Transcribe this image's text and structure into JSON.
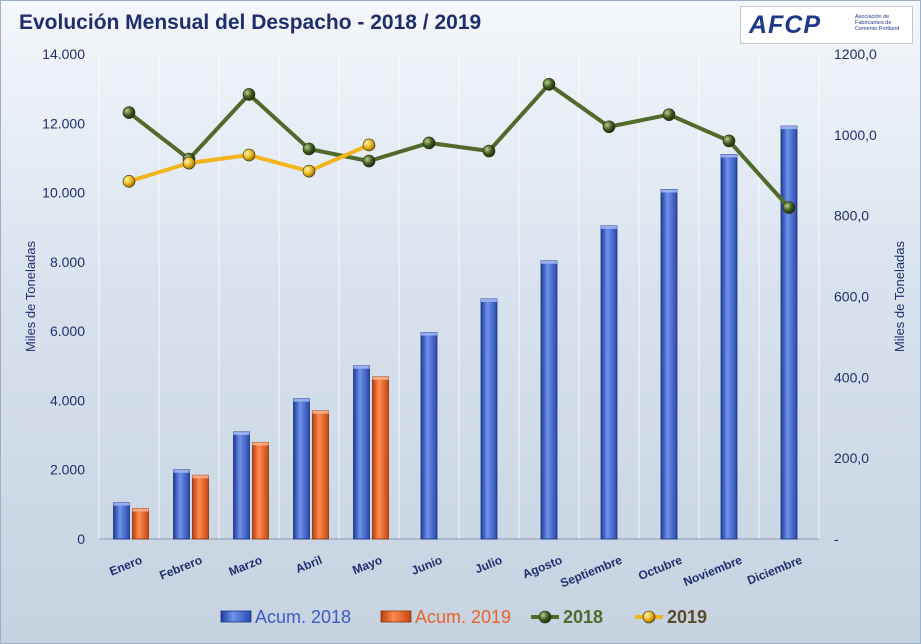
{
  "title": "Evolución Mensual del Despacho - 2018 / 2019",
  "logo": {
    "mark": "AFCP",
    "text": "Asociación de Fabricantes de Cemento Portland"
  },
  "chart_data": {
    "type": "bar",
    "categories": [
      "Enero",
      "Febrero",
      "Marzo",
      "Abril",
      "Mayo",
      "Junio",
      "Julio",
      "Agosto",
      "Septiembre",
      "Octubre",
      "Noviembre",
      "Diciembre"
    ],
    "ylabel": "Miles de Toneladas",
    "y2label": "Miles de Toneladas",
    "ylim": [
      0,
      14000
    ],
    "y2lim": [
      0,
      1200
    ],
    "y_ticks": [
      "0",
      "2.000",
      "4.000",
      "6.000",
      "8.000",
      "10.000",
      "12.000",
      "14.000"
    ],
    "y2_ticks": [
      "-",
      "200,0",
      "400,0",
      "600,0",
      "800,0",
      "1000,0",
      "1200,0"
    ],
    "legend_position": "bottom",
    "bar_series": [
      {
        "name": "Acum. 2018",
        "color": "#4a6fd6",
        "values": [
          1050,
          2000,
          3090,
          4050,
          5000,
          5960,
          6930,
          8030,
          9040,
          10090,
          11100,
          11920
        ]
      },
      {
        "name": "Acum. 2019",
        "color": "#e8632a",
        "values": [
          880,
          1840,
          2790,
          3700,
          4680,
          null,
          null,
          null,
          null,
          null,
          null,
          null
        ]
      }
    ],
    "line_series": [
      {
        "name": "2018",
        "color": "#4f6a2a",
        "marker_color": "#3e5a22",
        "values": [
          1055,
          940,
          1100,
          965,
          935,
          980,
          960,
          1125,
          1020,
          1050,
          985,
          820
        ]
      },
      {
        "name": "2019",
        "color": "#f2b51e",
        "marker_color": "#e8b418",
        "values": [
          885,
          930,
          950,
          910,
          975,
          null,
          null,
          null,
          null,
          null,
          null,
          null
        ]
      }
    ]
  }
}
